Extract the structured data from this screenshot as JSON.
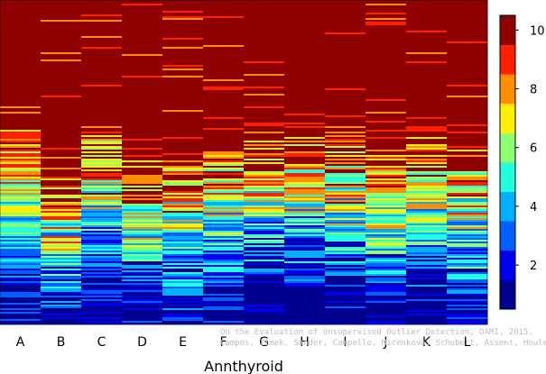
{
  "chart_data": {
    "type": "heatmap",
    "title": "",
    "xlabel": "Annthyroid",
    "ylabel": "",
    "categories": [
      "A",
      "B",
      "C",
      "D",
      "E",
      "F",
      "G",
      "H",
      "I",
      "J",
      "K",
      "L"
    ],
    "color_scale": {
      "min": 0.5,
      "max": 10.5,
      "ticks": [
        2,
        4,
        6,
        8,
        10
      ],
      "levels": [
        "#00008f",
        "#0000ef",
        "#0060ff",
        "#00b0ff",
        "#20ffdf",
        "#8fff70",
        "#ffef00",
        "#ff8f00",
        "#ff2000",
        "#8f0000"
      ]
    },
    "series": [
      {
        "name": "A",
        "breaks": [
          1.5,
          2.5,
          3.5,
          4.5,
          5.5,
          6.5,
          7.5,
          8.5,
          9.5
        ],
        "base": [
          0.975,
          0.955,
          0.935,
          0.915,
          0.895,
          0.875,
          0.855,
          0.835,
          0.815
        ]
      },
      {
        "name": "B",
        "breaks": [
          1.2,
          1.8,
          2.7,
          3.3,
          4.0,
          4.8,
          5.4,
          5.8,
          6.2
        ]
      },
      {
        "name": "C",
        "breaks": [
          1.8,
          2.6,
          3.6,
          4.8,
          5.6,
          6.3,
          6.8,
          7.2,
          7.5
        ]
      },
      {
        "name": "D",
        "breaks": [
          1.5,
          2.1,
          2.9,
          3.9,
          4.8,
          5.5,
          6.1,
          6.6,
          7.0
        ]
      },
      {
        "name": "E",
        "breaks": [
          1.4,
          2.0,
          2.8,
          3.8,
          4.6,
          5.3,
          5.9,
          6.3,
          6.8
        ]
      },
      {
        "name": "F",
        "breaks": [
          1.6,
          2.4,
          3.2,
          4.1,
          4.9,
          5.6,
          6.3,
          6.8,
          7.3
        ]
      },
      {
        "name": "G",
        "breaks": [
          2.4,
          3.2,
          4.0,
          4.8,
          5.5,
          6.2,
          6.9,
          7.5,
          8.0
        ]
      },
      {
        "name": "H",
        "breaks": [
          2.8,
          3.5,
          4.2,
          4.9,
          5.6,
          6.3,
          6.9,
          7.4,
          8.0
        ]
      },
      {
        "name": "I",
        "breaks": [
          2.5,
          3.0,
          3.8,
          4.5,
          5.2,
          5.9,
          6.5,
          7.0,
          7.3
        ]
      },
      {
        "name": "J",
        "breaks": [
          1.8,
          2.6,
          3.4,
          4.1,
          4.8,
          5.6,
          6.2,
          6.9,
          7.6
        ]
      },
      {
        "name": "K",
        "breaks": [
          2.0,
          2.8,
          3.6,
          4.4,
          5.2,
          6.0,
          6.7,
          7.4,
          8.1
        ]
      },
      {
        "name": "L",
        "breaks": [
          1.5,
          2.2,
          3.0,
          3.9,
          4.7,
          5.4,
          6.0,
          6.6,
          7.1
        ]
      }
    ],
    "colorbar_ticks": [
      "2",
      "4",
      "6",
      "8",
      "10"
    ],
    "credit_line_1": "On the Evaluation of Unsupervised Outlier Detection, DAMI, 2015.",
    "credit_line_2": "Campos, Zimek, Sander, Campello, Micenková, Schubert, Assent, Houle"
  }
}
